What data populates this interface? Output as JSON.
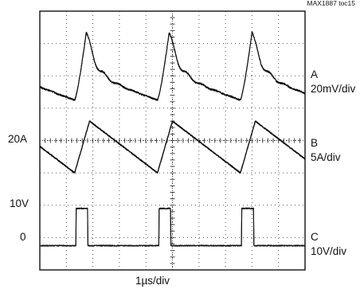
{
  "doc_tag": "MAX1887 toc15",
  "chart_data": {
    "type": "line",
    "title": "",
    "xlabel": "1µs/div",
    "ylabel": "",
    "grid": true,
    "grid_divisions": {
      "horizontal": 10,
      "vertical": 8
    },
    "time_per_div_us": 1,
    "switching_period_us": 2.5,
    "switching_edges_us": [
      1.05,
      3.55,
      6.05
    ],
    "x_range_us": [
      0,
      8
    ],
    "channels": [
      {
        "name": "A",
        "label_line1": "A",
        "label_line2": "20mV/div",
        "scale": "20mV/div",
        "shape": "output ripple with spike at each switching edge",
        "baseline_div": 5.25,
        "min_div": 5.25,
        "spike_peak_div": 7.35,
        "settle_div": 6.05
      },
      {
        "name": "B",
        "label_line1": "B",
        "label_line2": "5A/div",
        "scale": "5A/div",
        "shape": "sawtooth inductor current",
        "level_marker": "20A",
        "valley_div": 3.0,
        "peak_div": 4.6
      },
      {
        "name": "C",
        "label_line1": "C",
        "label_line2": "10V/div",
        "scale": "10V/div",
        "shape": "switching pulses",
        "level_markers": [
          "10V",
          "0"
        ],
        "low_div": 0.75,
        "high_div": 1.9,
        "pulse_width_us": 0.4
      }
    ]
  },
  "left_labels": {
    "ch_b_level": "20A",
    "ch_c_high": "10V",
    "ch_c_zero": "0"
  }
}
